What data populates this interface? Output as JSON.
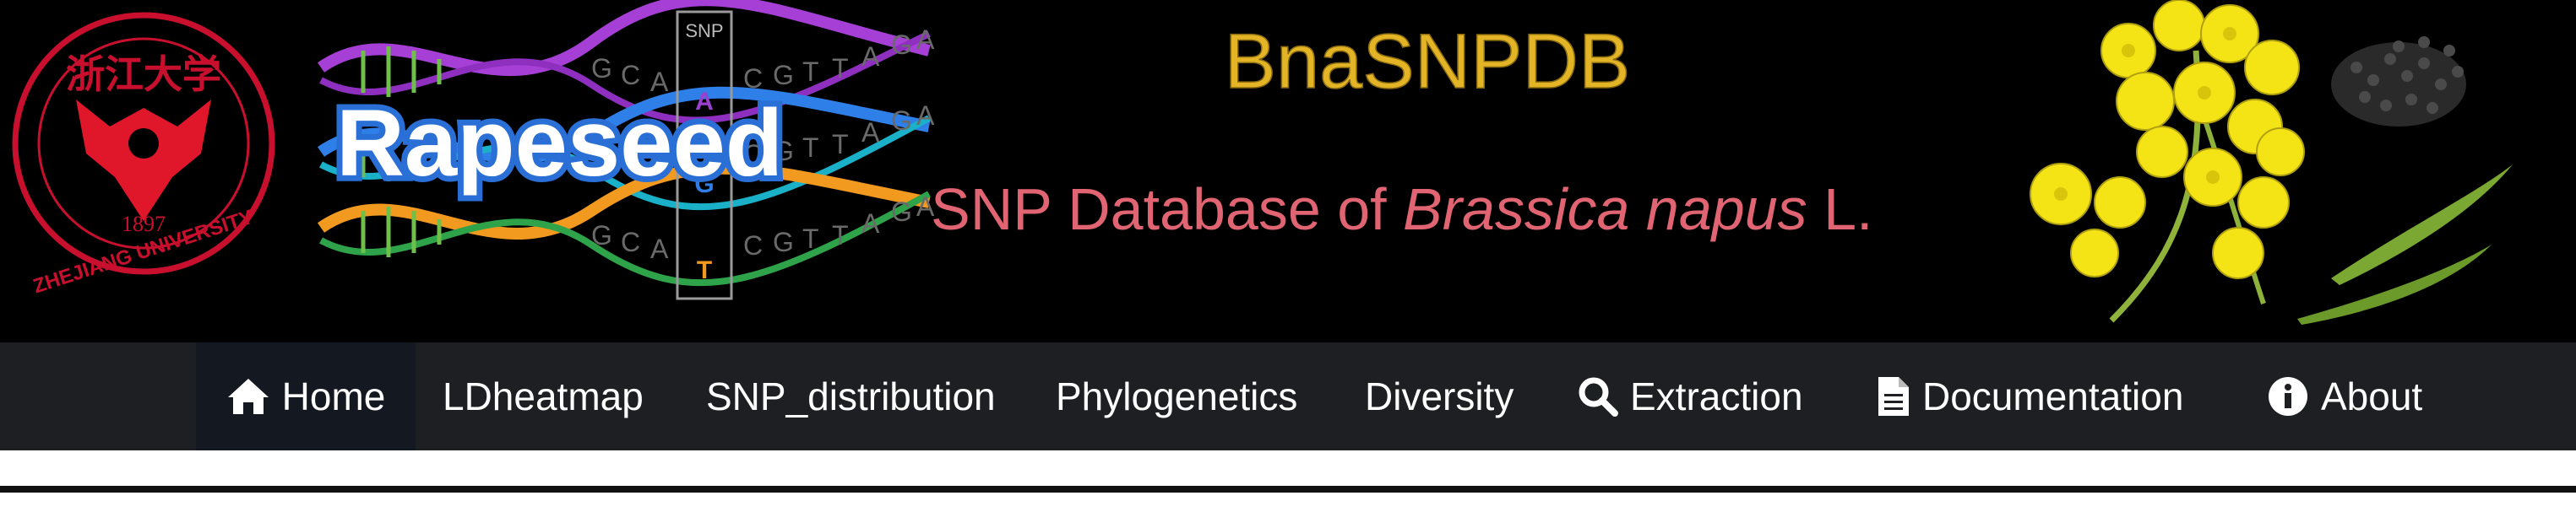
{
  "banner": {
    "university_logo": {
      "seal_text": "浙江大学",
      "english_text": "ZHEJIANG UNIVERSITY",
      "year": "1897"
    },
    "brand_word": "Rapeseed",
    "dna_label": "SNP",
    "dna_letters": {
      "row1": [
        "G",
        "C",
        "A",
        "C",
        "G",
        "T",
        "T",
        "A",
        "G",
        "A"
      ],
      "row2": [
        "G",
        "C",
        "A",
        "C",
        "G",
        "T",
        "T",
        "A",
        "G",
        "A"
      ],
      "row3": [
        "G",
        "C",
        "A",
        "C",
        "G",
        "T",
        "T",
        "A",
        "G",
        "A"
      ],
      "snp_bases": [
        "A",
        "G",
        "T"
      ]
    },
    "title": "BnaSNPDB",
    "subtitle_prefix": "SNP Database of ",
    "subtitle_species": "Brassica napus",
    "subtitle_suffix": " L.",
    "colors": {
      "title": "#e3b526",
      "subtitle": "#e06472",
      "flower": "#f4e416",
      "background": "#000000"
    }
  },
  "nav": {
    "items": [
      {
        "label": "Home",
        "icon": "home-icon",
        "active": true
      },
      {
        "label": "LDheatmap",
        "icon": "",
        "active": false
      },
      {
        "label": "SNP_distribution",
        "icon": "",
        "active": false
      },
      {
        "label": "Phylogenetics",
        "icon": "",
        "active": false
      },
      {
        "label": "Diversity",
        "icon": "",
        "active": false
      },
      {
        "label": "Extraction",
        "icon": "search-icon",
        "active": false
      },
      {
        "label": "Documentation",
        "icon": "document-icon",
        "active": false
      },
      {
        "label": "About",
        "icon": "info-icon",
        "active": false
      }
    ],
    "colors": {
      "bar": "#1e1f23",
      "active": "#141821",
      "text": "#ffffff"
    }
  }
}
